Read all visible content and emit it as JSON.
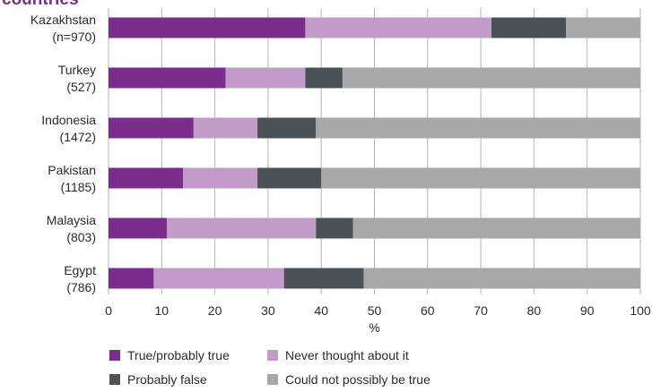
{
  "title_fragment": "countries",
  "chart_data": {
    "type": "bar",
    "orientation": "horizontal",
    "stacked": true,
    "title": "countries",
    "xlabel": "%",
    "ylabel": "",
    "xlim": [
      0,
      100
    ],
    "xticks": [
      "0",
      "10",
      "20",
      "30",
      "40",
      "50",
      "60",
      "70",
      "80",
      "90",
      "100"
    ],
    "grid": "vertical",
    "legend_position": "bottom",
    "categories": [
      {
        "name": "Kazakhstan",
        "n": "(n=970)"
      },
      {
        "name": "Turkey",
        "n": "(527)"
      },
      {
        "name": "Indonesia",
        "n": "(1472)"
      },
      {
        "name": "Pakistan",
        "n": "(1185)"
      },
      {
        "name": "Malaysia",
        "n": "(803)"
      },
      {
        "name": "Egypt",
        "n": "(786)"
      }
    ],
    "series": [
      {
        "name": "True/probably true",
        "color": "#7b2d8e",
        "values": [
          37,
          22,
          16,
          14,
          11,
          8.5
        ]
      },
      {
        "name": "Never thought about it",
        "color": "#c39bc9",
        "values": [
          35,
          15,
          12,
          14,
          28,
          24.5
        ]
      },
      {
        "name": "Probably false",
        "color": "#4a5258",
        "values": [
          14,
          7,
          11,
          12,
          7,
          15
        ]
      },
      {
        "name": "Could not possibly be true",
        "color": "#a6a8a9",
        "values": [
          14,
          56,
          61,
          60,
          54,
          52
        ]
      }
    ]
  }
}
